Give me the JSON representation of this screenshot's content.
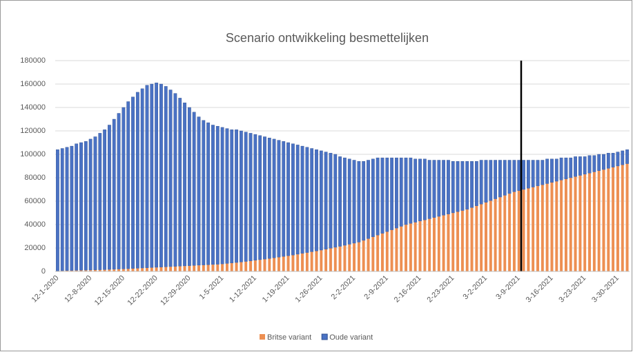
{
  "chart_data": {
    "type": "stacked-bar",
    "title": "Scenario ontwikkeling besmettelijken",
    "categories": [
      "12-1-2020",
      null,
      null,
      null,
      null,
      null,
      null,
      "12-8-2020",
      null,
      null,
      null,
      null,
      null,
      null,
      "12-15-2020",
      null,
      null,
      null,
      null,
      null,
      null,
      "12-22-2020",
      null,
      null,
      null,
      null,
      null,
      null,
      "12-29-2020",
      null,
      null,
      null,
      null,
      null,
      null,
      "1-5-2021",
      null,
      null,
      null,
      null,
      null,
      null,
      "1-12-2021",
      null,
      null,
      null,
      null,
      null,
      null,
      "1-19-2021",
      null,
      null,
      null,
      null,
      null,
      null,
      "1-26-2021",
      null,
      null,
      null,
      null,
      null,
      null,
      "2-2-2021",
      null,
      null,
      null,
      null,
      null,
      null,
      "2-9-2021",
      null,
      null,
      null,
      null,
      null,
      null,
      "2-16-2021",
      null,
      null,
      null,
      null,
      null,
      null,
      "2-23-2021",
      null,
      null,
      null,
      null,
      null,
      null,
      "3-2-2021",
      null,
      null,
      null,
      null,
      null,
      null,
      "3-9-2021",
      null,
      null,
      null,
      null,
      null,
      null,
      "3-16-2021",
      null,
      null,
      null,
      null,
      null,
      null,
      "3-23-2021",
      null,
      null,
      null,
      null,
      null,
      null,
      "3-30-2021",
      null,
      null
    ],
    "series": [
      {
        "name": "Britse variant",
        "color": "#ed8f52",
        "values": [
          500,
          600,
          700,
          800,
          900,
          1000,
          1100,
          1200,
          1300,
          1400,
          1500,
          1700,
          1800,
          2000,
          2100,
          2300,
          2500,
          2700,
          2900,
          3100,
          3300,
          3500,
          3700,
          3900,
          4100,
          4300,
          4500,
          4700,
          4900,
          5100,
          5300,
          5500,
          5700,
          5900,
          6100,
          6400,
          6800,
          7200,
          7600,
          8000,
          8500,
          9000,
          9500,
          10000,
          10500,
          11000,
          11600,
          12200,
          12800,
          13400,
          14000,
          14700,
          15400,
          16100,
          16800,
          17500,
          18200,
          19000,
          19800,
          20600,
          21400,
          22300,
          23200,
          24100,
          25000,
          26500,
          28000,
          29500,
          31000,
          32500,
          34000,
          35500,
          37000,
          38500,
          40000,
          41000,
          42000,
          43000,
          44000,
          45000,
          46000,
          47000,
          48000,
          49000,
          50000,
          51000,
          52000,
          53000,
          54500,
          56000,
          57500,
          59000,
          60500,
          62000,
          63500,
          65000,
          66500,
          68000,
          69000,
          70000,
          71000,
          72000,
          73000,
          74000,
          75000,
          76000,
          77000,
          78000,
          79000,
          80000,
          81000,
          82000,
          83000,
          84000,
          85000,
          86000,
          87000,
          88000,
          89000,
          90000,
          91000,
          92000
        ]
      },
      {
        "name": "Oude variant",
        "color": "#4a72c4",
        "values": [
          103500,
          104400,
          105300,
          106200,
          108100,
          109000,
          109900,
          111800,
          113700,
          116600,
          119500,
          123300,
          128200,
          133000,
          137900,
          142700,
          146500,
          150300,
          153100,
          155900,
          156700,
          157500,
          156300,
          154100,
          150900,
          147700,
          143500,
          139300,
          135100,
          130900,
          126700,
          123500,
          121300,
          119100,
          117900,
          116600,
          115200,
          113800,
          113400,
          112000,
          110500,
          109000,
          107500,
          106000,
          104500,
          103000,
          101400,
          99800,
          98200,
          96600,
          95000,
          93300,
          91600,
          89900,
          88200,
          86500,
          84800,
          83000,
          81200,
          79400,
          76600,
          74700,
          72800,
          70900,
          69000,
          67500,
          67000,
          66500,
          66000,
          64500,
          63000,
          61500,
          60000,
          58500,
          57000,
          56000,
          54000,
          53000,
          52000,
          50000,
          49000,
          48000,
          47000,
          46000,
          44000,
          43000,
          42000,
          41000,
          39500,
          38000,
          37500,
          36000,
          34500,
          33000,
          31500,
          30000,
          28500,
          27000,
          26000,
          25000,
          24000,
          23000,
          22000,
          21000,
          21000,
          20000,
          19000,
          19000,
          18000,
          17000,
          17000,
          16000,
          15000,
          15000,
          14000,
          14000,
          13000,
          13000,
          12000,
          12000,
          12000,
          12000
        ]
      }
    ],
    "ylim": [
      0,
      180000
    ],
    "yticks": [
      0,
      20000,
      40000,
      60000,
      80000,
      100000,
      120000,
      140000,
      160000,
      180000
    ],
    "grid": true,
    "legend": "bottom"
  }
}
